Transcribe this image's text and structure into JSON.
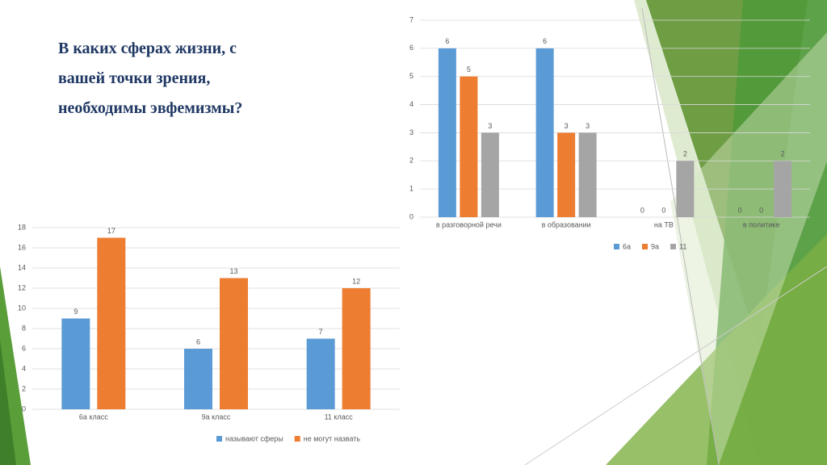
{
  "slide_title": "В каких сферах жизни, с вашей точки зрения, необходимы эвфемизмы?",
  "chart_data": [
    {
      "type": "bar",
      "categories": [
        "в разговорной речи",
        "в образовании",
        "на ТВ",
        "в политике"
      ],
      "series": [
        {
          "name": "6а",
          "color": "#5b9bd5",
          "values": [
            6,
            6,
            0,
            0
          ]
        },
        {
          "name": "9а",
          "color": "#ed7d31",
          "values": [
            5,
            3,
            0,
            0
          ]
        },
        {
          "name": "11",
          "color": "#a5a5a5",
          "values": [
            3,
            3,
            2,
            2
          ]
        }
      ],
      "ylim": [
        0,
        7
      ],
      "yticks": [
        0,
        1,
        2,
        3,
        4,
        5,
        6,
        7
      ],
      "grid": true,
      "legend": "bottom"
    },
    {
      "type": "bar",
      "categories": [
        "6а класс",
        "9а класс",
        "11 класс"
      ],
      "series": [
        {
          "name": "называют сферы",
          "color": "#5b9bd5",
          "values": [
            9,
            6,
            7
          ]
        },
        {
          "name": "не могут назвать",
          "color": "#ed7d31",
          "values": [
            17,
            13,
            12
          ]
        }
      ],
      "ylim": [
        0,
        18
      ],
      "yticks": [
        0,
        2,
        4,
        6,
        8,
        10,
        12,
        14,
        16,
        18
      ],
      "grid": true,
      "legend": "bottom"
    }
  ]
}
